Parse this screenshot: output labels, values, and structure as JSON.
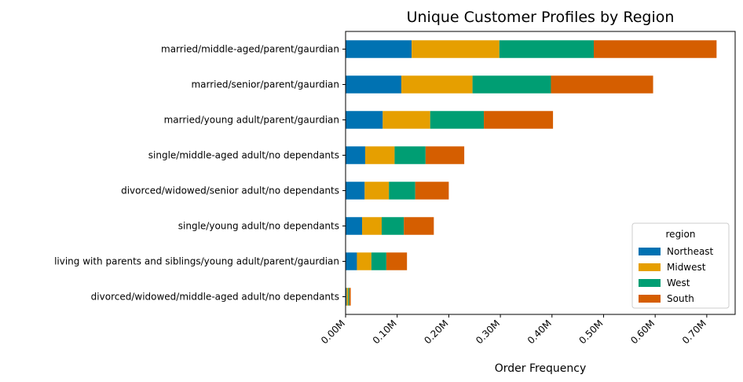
{
  "chart_data": {
    "type": "bar",
    "orientation": "horizontal",
    "stacked": true,
    "title": "Unique Customer Profiles by Region",
    "xlabel": "Order Frequency",
    "ylabel": "",
    "xlim": [
      0,
      0.755
    ],
    "x_unit_suffix": "M",
    "x_ticks": [
      0.0,
      0.1,
      0.2,
      0.3,
      0.4,
      0.5,
      0.6,
      0.7
    ],
    "x_tick_labels": [
      "0.00M",
      "0.10M",
      "0.20M",
      "0.30M",
      "0.40M",
      "0.50M",
      "0.60M",
      "0.70M"
    ],
    "categories": [
      "married/middle-aged/parent/gaurdian",
      "married/senior/parent/gaurdian",
      "married/young adult/parent/gaurdian",
      "single/middle-aged adult/no dependants",
      "divorced/widowed/senior adult/no dependants",
      "single/young adult/no dependants",
      "living with parents and siblings/young adult/parent/gaurdian",
      "divorced/widowed/middle-aged adult/no dependants"
    ],
    "series": [
      {
        "name": "Northeast",
        "color": "#0072b2",
        "values": [
          0.128,
          0.108,
          0.072,
          0.038,
          0.037,
          0.032,
          0.022,
          0.002
        ]
      },
      {
        "name": "Midwest",
        "color": "#e69f00",
        "values": [
          0.17,
          0.138,
          0.092,
          0.057,
          0.047,
          0.038,
          0.028,
          0.003
        ]
      },
      {
        "name": "West",
        "color": "#009e73",
        "values": [
          0.183,
          0.152,
          0.104,
          0.06,
          0.051,
          0.043,
          0.029,
          0.002
        ]
      },
      {
        "name": "South",
        "color": "#d55e00",
        "values": [
          0.238,
          0.198,
          0.134,
          0.075,
          0.065,
          0.058,
          0.04,
          0.003
        ]
      }
    ],
    "legend": {
      "title": "region",
      "placement": "bottom-right"
    },
    "grid": false
  }
}
